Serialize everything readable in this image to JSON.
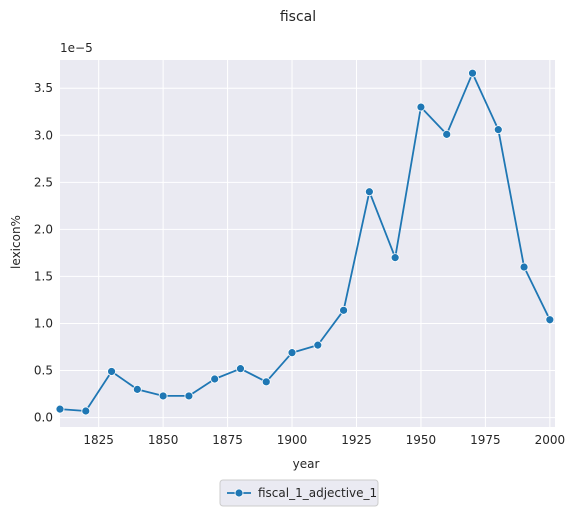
{
  "chart_data": {
    "type": "line",
    "title": "fiscal",
    "xlabel": "year",
    "ylabel": "lexicon%",
    "y_scale_label": "1e−5",
    "xlim": [
      1810,
      2002
    ],
    "ylim": [
      -0.1,
      3.8
    ],
    "x_ticks": [
      1825,
      1850,
      1875,
      1900,
      1925,
      1950,
      1975,
      2000
    ],
    "y_ticks": [
      0.0,
      0.5,
      1.0,
      1.5,
      2.0,
      2.5,
      3.0,
      3.5
    ],
    "x_tick_labels": [
      "1825",
      "1850",
      "1875",
      "1900",
      "1925",
      "1950",
      "1975",
      "2000"
    ],
    "y_tick_labels": [
      "0.0",
      "0.5",
      "1.0",
      "1.5",
      "2.0",
      "2.5",
      "3.0",
      "3.5"
    ],
    "grid": true,
    "legend_position": "bottom-center",
    "series": [
      {
        "name": "fiscal_1_adjective_1",
        "color": "#1f77b4",
        "marker": "circle",
        "points": [
          {
            "x": 1810,
            "y": 0.09
          },
          {
            "x": 1820,
            "y": 0.07
          },
          {
            "x": 1830,
            "y": 0.49
          },
          {
            "x": 1840,
            "y": 0.3
          },
          {
            "x": 1850,
            "y": 0.23
          },
          {
            "x": 1860,
            "y": 0.23
          },
          {
            "x": 1870,
            "y": 0.41
          },
          {
            "x": 1880,
            "y": 0.52
          },
          {
            "x": 1890,
            "y": 0.38
          },
          {
            "x": 1900,
            "y": 0.69
          },
          {
            "x": 1910,
            "y": 0.77
          },
          {
            "x": 1920,
            "y": 1.14
          },
          {
            "x": 1930,
            "y": 2.4
          },
          {
            "x": 1940,
            "y": 1.7
          },
          {
            "x": 1950,
            "y": 3.3
          },
          {
            "x": 1960,
            "y": 3.01
          },
          {
            "x": 1970,
            "y": 3.66
          },
          {
            "x": 1980,
            "y": 3.06
          },
          {
            "x": 1990,
            "y": 1.6
          },
          {
            "x": 2000,
            "y": 1.04
          }
        ]
      }
    ]
  }
}
